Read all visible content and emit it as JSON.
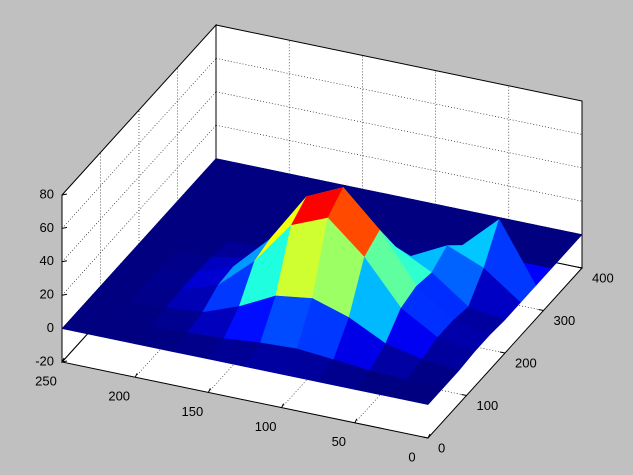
{
  "chart_data": {
    "type": "surface",
    "x": [
      0,
      25,
      50,
      75,
      100,
      125,
      150,
      175,
      200,
      225,
      250
    ],
    "y": [
      0,
      40,
      80,
      120,
      160,
      200,
      240,
      280,
      320,
      360,
      400
    ],
    "z": [
      [
        0,
        0,
        0,
        1,
        1,
        0,
        0,
        0,
        0,
        0,
        0
      ],
      [
        0,
        0,
        2,
        5,
        5,
        3,
        16,
        35,
        0,
        0,
        0
      ],
      [
        0,
        1,
        7,
        18,
        21,
        19,
        25,
        15,
        0,
        0,
        0
      ],
      [
        0,
        3,
        18,
        44,
        50,
        30,
        14,
        1,
        0,
        0,
        0
      ],
      [
        0,
        5,
        25,
        63,
        71,
        36,
        8,
        1,
        0,
        0,
        0
      ],
      [
        0,
        4,
        22,
        54,
        61,
        31,
        7,
        1,
        0,
        0,
        0
      ],
      [
        0,
        2,
        11,
        28,
        31,
        16,
        4,
        0,
        0,
        0,
        0
      ],
      [
        0,
        1,
        3,
        9,
        10,
        5,
        1,
        0,
        0,
        0,
        0
      ],
      [
        0,
        0,
        1,
        2,
        2,
        1,
        0,
        0,
        0,
        0,
        0
      ],
      [
        0,
        0,
        0,
        0,
        0,
        0,
        0,
        0,
        0,
        0,
        0
      ],
      [
        0,
        0,
        0,
        0,
        0,
        0,
        0,
        0,
        0,
        0,
        0
      ]
    ],
    "xlim": [
      0,
      250
    ],
    "ylim": [
      0,
      400
    ],
    "zlim": [
      -20,
      80
    ],
    "xticks": [
      0,
      50,
      100,
      150,
      200,
      250
    ],
    "yticks": [
      0,
      100,
      200,
      300,
      400
    ],
    "zticks": [
      -20,
      0,
      20,
      40,
      60,
      80
    ],
    "colormap": "jet",
    "grid": true
  }
}
